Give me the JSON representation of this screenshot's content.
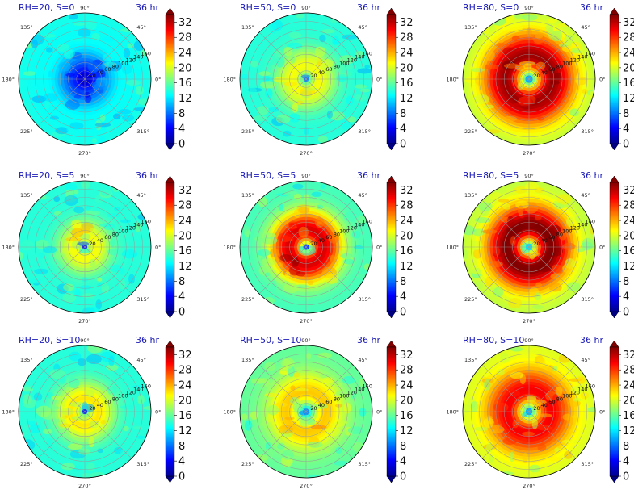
{
  "chart_data": {
    "type": "polar-contour-grid",
    "time_label": "36 hr",
    "angular_tick_labels": [
      "0°",
      "45°",
      "90°",
      "135°",
      "180°",
      "225°",
      "270°",
      "315°"
    ],
    "radial_tick_labels": [
      "20",
      "40",
      "60",
      "80",
      "100",
      "120",
      "140",
      "160"
    ],
    "radial_range": [
      0,
      160
    ],
    "colorbar": {
      "colormap": "jet",
      "range": [
        0,
        34
      ],
      "ticks": [
        "0",
        "4",
        "8",
        "12",
        "16",
        "20",
        "24",
        "28",
        "32"
      ],
      "extend": "both"
    },
    "panels": [
      {
        "title": "RH=20, S=0",
        "rh": 20,
        "s": 0,
        "core_value": 3,
        "ring_value": 13,
        "ring_radius": 100,
        "outer_value": 14
      },
      {
        "title": "RH=50, S=0",
        "rh": 50,
        "s": 0,
        "core_value": 8,
        "ring_value": 21,
        "ring_radius": 35,
        "outer_value": 14
      },
      {
        "title": "RH=80, S=0",
        "rh": 80,
        "s": 0,
        "core_value": 10,
        "ring_value": 33,
        "ring_radius": 60,
        "outer_value": 19
      },
      {
        "title": "RH=20, S=5",
        "rh": 20,
        "s": 5,
        "core_value": 4,
        "ring_value": 21,
        "ring_radius": 30,
        "outer_value": 14
      },
      {
        "title": "RH=50, S=5",
        "rh": 50,
        "s": 5,
        "core_value": 6,
        "ring_value": 31,
        "ring_radius": 45,
        "outer_value": 15
      },
      {
        "title": "RH=80, S=5",
        "rh": 80,
        "s": 5,
        "core_value": 12,
        "ring_value": 34,
        "ring_radius": 55,
        "outer_value": 19
      },
      {
        "title": "RH=20, S=10",
        "rh": 20,
        "s": 10,
        "core_value": 4,
        "ring_value": 22,
        "ring_radius": 35,
        "outer_value": 14
      },
      {
        "title": "RH=50, S=10",
        "rh": 50,
        "s": 10,
        "core_value": 9,
        "ring_value": 23,
        "ring_radius": 50,
        "outer_value": 16
      },
      {
        "title": "RH=80, S=10",
        "rh": 80,
        "s": 10,
        "core_value": 10,
        "ring_value": 30,
        "ring_radius": 55,
        "outer_value": 20
      }
    ]
  }
}
